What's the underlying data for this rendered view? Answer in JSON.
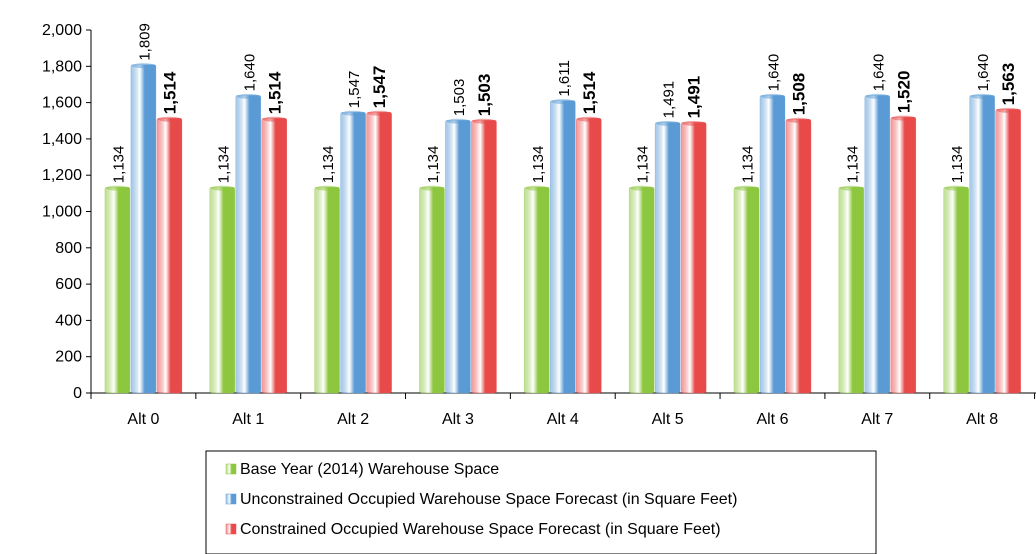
{
  "chart_data": {
    "type": "bar",
    "title": "",
    "xlabel": "",
    "ylabel": "",
    "ylim": [
      0,
      2000
    ],
    "yticks": [
      0,
      200,
      400,
      600,
      800,
      1000,
      1200,
      1400,
      1600,
      1800,
      2000
    ],
    "ytick_labels": [
      "0",
      "200",
      "400",
      "600",
      "800",
      "1,000",
      "1,200",
      "1,400",
      "1,600",
      "1,800",
      "2,000"
    ],
    "grid": false,
    "legend_position": "bottom-center",
    "categories": [
      "Alt 0",
      "Alt 1",
      "Alt 2",
      "Alt 3",
      "Alt 4",
      "Alt 5",
      "Alt 6",
      "Alt 7",
      "Alt 8"
    ],
    "series": [
      {
        "name": "Base Year (2014) Warehouse Space",
        "color": "#8dc63f",
        "values": [
          1134,
          1134,
          1134,
          1134,
          1134,
          1134,
          1134,
          1134,
          1134
        ],
        "labels": [
          "1,134",
          "1,134",
          "1,134",
          "1,134",
          "1,134",
          "1,134",
          "1,134",
          "1,134",
          "1,134"
        ],
        "label_bold": false
      },
      {
        "name": "Unconstrained Occupied Warehouse Space Forecast (in Square Feet)",
        "color": "#5b9bd5",
        "values": [
          1809,
          1640,
          1547,
          1503,
          1611,
          1491,
          1640,
          1640,
          1640
        ],
        "labels": [
          "1,809",
          "1,640",
          "1,547",
          "1,503",
          "1,611",
          "1,491",
          "1,640",
          "1,640",
          "1,640"
        ],
        "label_bold": false
      },
      {
        "name": "Constrained Occupied Warehouse Space Forecast (in Square Feet)",
        "color": "#e84a4a",
        "values": [
          1514,
          1514,
          1547,
          1503,
          1514,
          1491,
          1508,
          1520,
          1563
        ],
        "labels": [
          "1,514",
          "1,514",
          "1,547",
          "1,503",
          "1,514",
          "1,491",
          "1,508",
          "1,520",
          "1,563"
        ],
        "label_bold": true
      }
    ]
  }
}
